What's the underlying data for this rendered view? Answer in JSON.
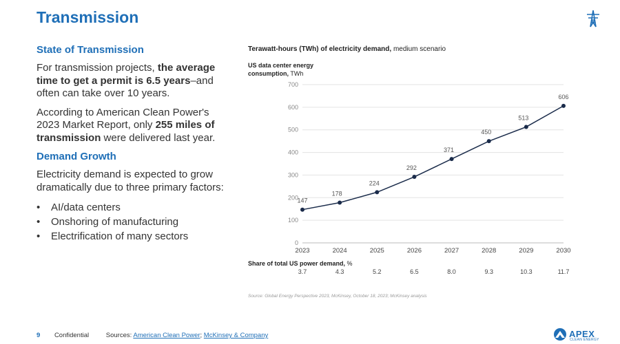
{
  "header": {
    "title": "Transmission",
    "icon": "transmission-tower-icon"
  },
  "left": {
    "section1_title": "State of Transmission",
    "p1_pre": "For transmission projects, ",
    "p1_bold": "the average time to get a permit is 6.5 years",
    "p1_post": "–and often can take over 10 years.",
    "p2_pre": "According to American Clean Power's 2023 Market Report, only ",
    "p2_bold": "255 miles of transmission",
    "p2_post": " were delivered last year.",
    "section2_title": "Demand Growth",
    "p3": "Electricity demand is expected to grow dramatically due to three primary factors:",
    "bullets": [
      "AI/data centers",
      "Onshoring of manufacturing",
      "Electrification of many sectors"
    ]
  },
  "chart_header": {
    "title_bold": "Terawatt-hours (TWh) of electricity demand,",
    "title_rest": " medium scenario",
    "sub_bold1": "US data center energy",
    "sub_bold2": "consumption,",
    "sub_rest": " TWh"
  },
  "chart_data": {
    "type": "line",
    "title": "Terawatt-hours (TWh) of electricity demand, medium scenario",
    "ylabel": "US data center energy consumption, TWh",
    "x": [
      "2023",
      "2024",
      "2025",
      "2026",
      "2027",
      "2028",
      "2029",
      "2030"
    ],
    "values": [
      147,
      178,
      224,
      292,
      371,
      450,
      513,
      606
    ],
    "yticks": [
      0,
      100,
      200,
      300,
      400,
      500,
      600,
      700
    ],
    "ylim": [
      0,
      700
    ],
    "grid": true,
    "line_color": "#1a2b4a",
    "share_label_bold": "Share of total US power demand,",
    "share_label_unit": " %",
    "share": [
      "3.7",
      "4.3",
      "5.2",
      "6.5",
      "8.0",
      "9.3",
      "10.3",
      "11.7"
    ]
  },
  "source_note": "Source: Global Energy Perspective 2023, McKinsey, October 18, 2023; McKinsey analysis",
  "footer": {
    "page": "9",
    "confidential": "Confidential",
    "sources_label": "Sources: ",
    "link1": "American Clean Power",
    "sep": ";",
    "link2": "McKinsey & Company"
  },
  "logo": {
    "name": "APEX",
    "sub": "CLEAN ENERGY"
  },
  "colors": {
    "brand": "#1f6fb7",
    "line": "#1a2b4a",
    "grid": "#e3e3e3"
  }
}
